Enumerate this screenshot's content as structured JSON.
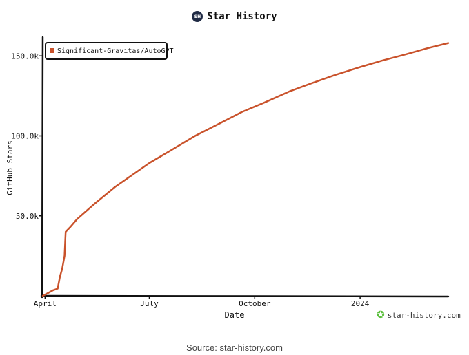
{
  "header": {
    "title": "Star History",
    "logo_text": "SH"
  },
  "source": "Source: star-history.com",
  "watermark": {
    "text": "star-history.com",
    "icon": "star-icon"
  },
  "chart_data": {
    "type": "line",
    "title": "Star History",
    "xlabel": "Date",
    "ylabel": "GitHub Stars",
    "x_ticks": [
      "April",
      "July",
      "October",
      "2024"
    ],
    "y_ticks": [
      "50.0k",
      "100.0k",
      "150.0k"
    ],
    "ylim": [
      0,
      160000
    ],
    "legend_position": "top-left",
    "series": [
      {
        "name": "Significant-Gravitas/AutoGPT",
        "color": "#c9522b",
        "points": [
          {
            "x": "2023-03-30",
            "y": 0
          },
          {
            "x": "2023-04-03",
            "y": 1500
          },
          {
            "x": "2023-04-08",
            "y": 3500
          },
          {
            "x": "2023-04-12",
            "y": 4500
          },
          {
            "x": "2023-04-14",
            "y": 12000
          },
          {
            "x": "2023-04-16",
            "y": 17000
          },
          {
            "x": "2023-04-18",
            "y": 25000
          },
          {
            "x": "2023-04-19",
            "y": 40000
          },
          {
            "x": "2023-04-23",
            "y": 43000
          },
          {
            "x": "2023-04-29",
            "y": 48000
          },
          {
            "x": "2023-05-15",
            "y": 58000
          },
          {
            "x": "2023-06-01",
            "y": 68000
          },
          {
            "x": "2023-06-15",
            "y": 75000
          },
          {
            "x": "2023-07-01",
            "y": 83000
          },
          {
            "x": "2023-07-20",
            "y": 91000
          },
          {
            "x": "2023-08-10",
            "y": 100000
          },
          {
            "x": "2023-09-01",
            "y": 108000
          },
          {
            "x": "2023-09-20",
            "y": 115000
          },
          {
            "x": "2023-10-10",
            "y": 121000
          },
          {
            "x": "2023-11-01",
            "y": 128000
          },
          {
            "x": "2023-11-20",
            "y": 133000
          },
          {
            "x": "2023-12-10",
            "y": 138000
          },
          {
            "x": "2024-01-01",
            "y": 143000
          },
          {
            "x": "2024-01-20",
            "y": 147000
          },
          {
            "x": "2024-02-10",
            "y": 151000
          },
          {
            "x": "2024-03-01",
            "y": 155000
          },
          {
            "x": "2024-03-18",
            "y": 158000
          }
        ]
      }
    ],
    "x_tick_dates": [
      "2023-04-01",
      "2023-07-01",
      "2023-10-01",
      "2024-01-01"
    ],
    "y_tick_values": [
      50000,
      100000,
      150000
    ]
  }
}
